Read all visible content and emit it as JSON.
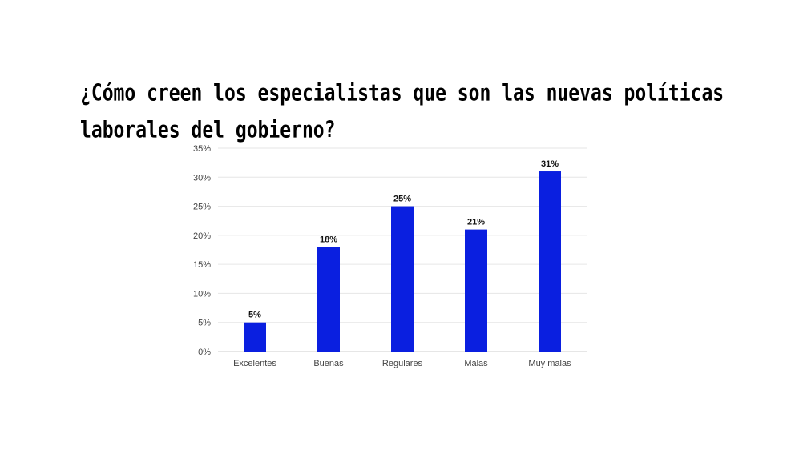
{
  "chart_data": {
    "type": "bar",
    "title": "¿Cómo creen los especialistas que son las nuevas políticas laborales del gobierno?",
    "categories": [
      "Excelentes",
      "Buenas",
      "Regulares",
      "Malas",
      "Muy malas"
    ],
    "values": [
      5,
      18,
      25,
      21,
      31
    ],
    "data_labels": [
      "5%",
      "18%",
      "25%",
      "21%",
      "31%"
    ],
    "yticks": [
      0,
      5,
      10,
      15,
      20,
      25,
      30,
      35
    ],
    "ytick_labels": [
      "0%",
      "5%",
      "10%",
      "15%",
      "20%",
      "25%",
      "30%",
      "35%"
    ],
    "ylim": [
      0,
      35
    ],
    "xlabel": "",
    "ylabel": "",
    "grid": true,
    "bar_color": "#0a1fe0"
  }
}
